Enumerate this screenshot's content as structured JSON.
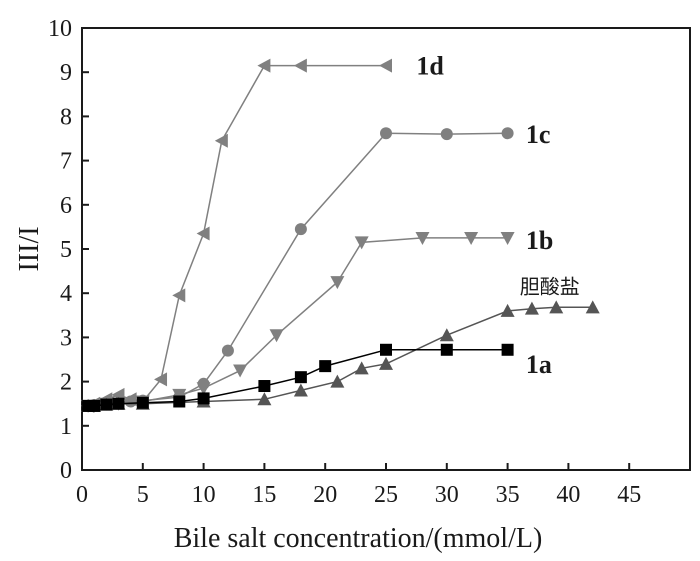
{
  "chart_data": {
    "type": "line",
    "xlabel": "Bile salt concentration/(mmol/L)",
    "ylabel": "III/I",
    "xlim": [
      0,
      50
    ],
    "ylim": [
      0,
      10
    ],
    "xticks": [
      "0",
      "5",
      "10",
      "15",
      "20",
      "25",
      "30",
      "35",
      "40",
      "45"
    ],
    "yticks": [
      "0",
      "1",
      "2",
      "3",
      "4",
      "5",
      "6",
      "7",
      "8",
      "9",
      "10"
    ],
    "grid": false,
    "series": [
      {
        "name": "1d",
        "marker": "triangle-left",
        "color": "#808080",
        "x": [
          0.5,
          1,
          2,
          3,
          4,
          5,
          6.5,
          8,
          10,
          11.5,
          15,
          18,
          25
        ],
        "y": [
          1.45,
          1.5,
          1.6,
          1.7,
          1.6,
          1.55,
          2.05,
          3.95,
          5.35,
          7.45,
          9.15,
          9.15,
          9.15
        ]
      },
      {
        "name": "1c",
        "marker": "circle",
        "color": "#808080",
        "x": [
          0.5,
          1,
          2,
          3,
          4,
          5,
          8,
          10,
          12,
          18,
          25,
          30,
          35
        ],
        "y": [
          1.45,
          1.47,
          1.5,
          1.52,
          1.55,
          1.57,
          1.65,
          1.95,
          2.7,
          5.45,
          7.62,
          7.6,
          7.62
        ]
      },
      {
        "name": "1b",
        "marker": "triangle-down",
        "color": "#808080",
        "x": [
          0.5,
          1,
          2,
          3,
          5,
          8,
          10,
          13,
          16,
          21,
          23,
          28,
          32,
          35
        ],
        "y": [
          1.45,
          1.45,
          1.5,
          1.5,
          1.55,
          1.7,
          1.85,
          2.25,
          3.05,
          4.25,
          5.15,
          5.25,
          5.25,
          5.25
        ]
      },
      {
        "name": "胆酸盐",
        "marker": "triangle-up",
        "color": "#555555",
        "x": [
          0.5,
          1,
          2,
          3,
          5,
          10,
          15,
          18,
          21,
          23,
          25,
          30,
          35,
          37,
          39,
          42
        ],
        "y": [
          1.45,
          1.45,
          1.48,
          1.5,
          1.5,
          1.55,
          1.6,
          1.8,
          2.0,
          2.3,
          2.4,
          3.05,
          3.6,
          3.65,
          3.68,
          3.68
        ]
      },
      {
        "name": "1a",
        "marker": "square",
        "color": "#000000",
        "x": [
          0.5,
          1,
          2,
          3,
          5,
          8,
          10,
          15,
          18,
          20,
          25,
          30,
          35
        ],
        "y": [
          1.45,
          1.45,
          1.48,
          1.5,
          1.52,
          1.55,
          1.62,
          1.9,
          2.1,
          2.35,
          2.72,
          2.72,
          2.72
        ]
      }
    ],
    "annotations": [
      {
        "text": "1d",
        "x": 27.5,
        "y": 9.15
      },
      {
        "text": "1c",
        "x": 36.5,
        "y": 7.6
      },
      {
        "text": "1b",
        "x": 36.5,
        "y": 5.2
      },
      {
        "text": "胆酸盐",
        "x": 36,
        "y": 4.2
      },
      {
        "text": "1a",
        "x": 36.5,
        "y": 2.4
      }
    ]
  }
}
